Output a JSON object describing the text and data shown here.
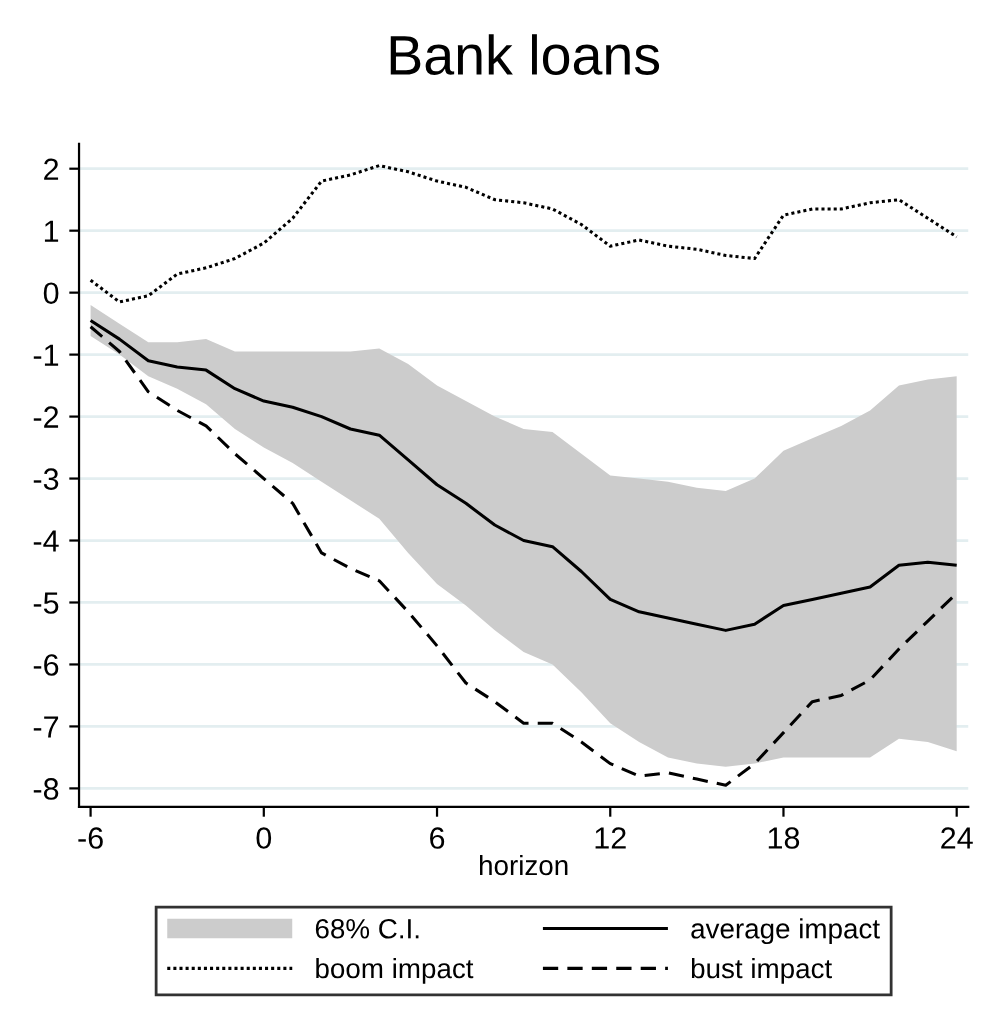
{
  "chart_data": {
    "type": "line",
    "title": "Bank loans",
    "xlabel": "horizon",
    "x": [
      -6,
      -5,
      -4,
      -3,
      -2,
      -1,
      0,
      1,
      2,
      3,
      4,
      5,
      6,
      7,
      8,
      9,
      10,
      11,
      12,
      13,
      14,
      15,
      16,
      17,
      18,
      19,
      20,
      21,
      22,
      23,
      24
    ],
    "series": [
      {
        "name": "68% C.I.",
        "color": "#cccccc",
        "values": [
          null,
          null,
          null,
          null,
          null,
          null,
          null,
          null,
          null,
          null,
          null,
          null,
          null,
          null,
          null,
          null,
          null,
          null,
          null,
          null,
          null,
          null,
          null,
          null,
          null,
          null,
          null,
          null,
          null,
          null,
          null
        ],
        "lower": [
          -0.7,
          -1.0,
          -1.35,
          -1.55,
          -1.8,
          -2.2,
          -2.5,
          -2.75,
          -3.05,
          -3.35,
          -3.65,
          -4.2,
          -4.7,
          -5.05,
          -5.45,
          -5.8,
          -6.0,
          -6.45,
          -6.95,
          -7.25,
          -7.5,
          -7.6,
          -7.65,
          -7.6,
          -7.5,
          -7.5,
          -7.5,
          -7.5,
          -7.2,
          -7.25,
          -7.4
        ],
        "upper": [
          -0.2,
          -0.5,
          -0.8,
          -0.8,
          -0.75,
          -0.95,
          -0.95,
          -0.95,
          -0.95,
          -0.95,
          -0.9,
          -1.15,
          -1.5,
          -1.75,
          -2.0,
          -2.2,
          -2.25,
          -2.6,
          -2.95,
          -3.0,
          -3.05,
          -3.15,
          -3.2,
          -3.0,
          -2.55,
          -2.35,
          -2.15,
          -1.9,
          -1.5,
          -1.4,
          -1.35
        ]
      },
      {
        "name": "average impact",
        "color": "#000000",
        "line_style": "solid",
        "values": [
          -0.45,
          -0.75,
          -1.1,
          -1.2,
          -1.25,
          -1.55,
          -1.75,
          -1.85,
          -2.0,
          -2.2,
          -2.3,
          -2.7,
          -3.1,
          -3.4,
          -3.75,
          -4.0,
          -4.1,
          -4.5,
          -4.95,
          -5.15,
          -5.25,
          -5.35,
          -5.45,
          -5.35,
          -5.05,
          -4.95,
          -4.85,
          -4.75,
          -4.4,
          -4.35,
          -4.4
        ]
      },
      {
        "name": "boom impact",
        "color": "#000000",
        "line_style": "dotted",
        "values": [
          0.2,
          -0.15,
          -0.05,
          0.3,
          0.4,
          0.55,
          0.8,
          1.2,
          1.8,
          1.9,
          2.05,
          1.95,
          1.8,
          1.7,
          1.5,
          1.45,
          1.35,
          1.1,
          0.75,
          0.85,
          0.75,
          0.7,
          0.6,
          0.55,
          1.25,
          1.35,
          1.35,
          1.45,
          1.5,
          1.2,
          0.9
        ]
      },
      {
        "name": "bust impact",
        "color": "#000000",
        "line_style": "dashed",
        "values": [
          -0.55,
          -0.95,
          -1.6,
          -1.9,
          -2.15,
          -2.6,
          -3.0,
          -3.4,
          -4.2,
          -4.45,
          -4.65,
          -5.15,
          -5.7,
          -6.3,
          -6.6,
          -6.95,
          -6.95,
          -7.25,
          -7.6,
          -7.8,
          -7.75,
          -7.85,
          -7.95,
          -7.6,
          -7.1,
          -6.6,
          -6.5,
          -6.25,
          -5.75,
          -5.3,
          -4.85
        ]
      }
    ],
    "xlim": [
      -6.4,
      24.4
    ],
    "xticks": [
      -6,
      0,
      6,
      12,
      18,
      24
    ],
    "ylim": [
      -8.3,
      2.4
    ],
    "yticks": [
      -8,
      -7,
      -6,
      -5,
      -4,
      -3,
      -2,
      -1,
      0,
      1,
      2
    ],
    "grid": "y",
    "legend": "bottom"
  }
}
